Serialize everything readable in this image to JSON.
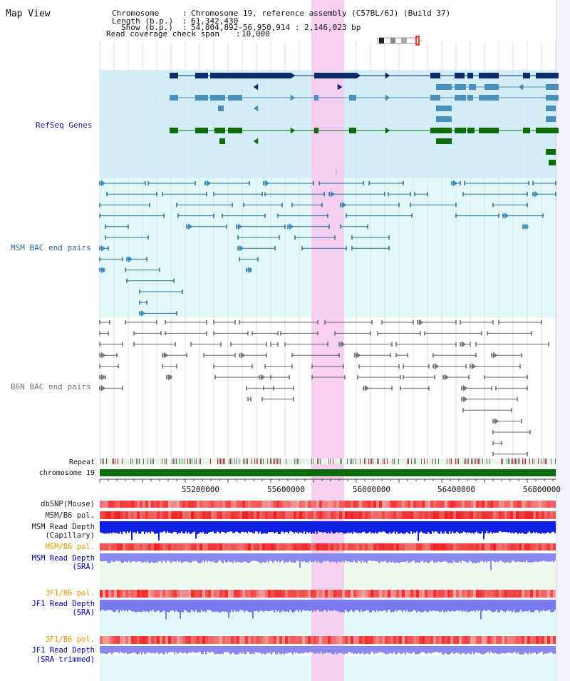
{
  "app": {
    "title": "Map View"
  },
  "header": {
    "chromosome_key": "Chromosome",
    "chromosome_val": "Chromosome 19, reference assembly (C57BL/6J) (Build 37)",
    "length_key": "Length (b.p.)",
    "length_val": "61,342,430",
    "show_key": "Show (b.p.)",
    "show_val": "54,804,892-56,950,914 : 2,146,023 bp",
    "coverage_key": "Read coverage check span",
    "coverage_val": "10,000"
  },
  "tracks": {
    "refseq": "RefSeq Genes",
    "msm_bac": "MSM BAC end pairs",
    "b6n_bac": "B6N BAC end pairs",
    "repeat": "Repeat",
    "chromosome": "chromosome 19",
    "dbsnp": "dbSNP(Mouse)",
    "msm_b6_pol": "MSM/B6 pol.",
    "msm_depth_cap_1": "MSM Read Depth",
    "msm_depth_cap_2": "(Capillary)",
    "msm_b6_pol2": "MSM/B6 pol.",
    "msm_depth_sra_1": "MSM Read Depth",
    "msm_depth_sra_2": "(SRA)",
    "jf1_b6_pol": "JF1/B6 pol.",
    "jf1_depth_sra_1": "JF1 Read Depth",
    "jf1_depth_sra_2": "(SRA)",
    "jf1_b6_pol2": "JF1/B6 pol.",
    "jf1_depth_trim_1": "JF1 Read Depth",
    "jf1_depth_trim_2": "(SRA trimmed)"
  },
  "axis": {
    "ticks": [
      "55200000",
      "55600000",
      "56000000",
      "56400000",
      "56800000"
    ]
  },
  "colors": {
    "refseq_label": "#1a1aa8",
    "msm_label": "#2a6aa0",
    "b6n_label": "#777777",
    "pol_label": "#e69500",
    "depth_label": "#0000aa",
    "highlight": "#f7c8ee",
    "refseq_bg": "#d4eef8",
    "msm_bg": "#e2f8f8",
    "dark_gene": "#0b2c66",
    "light_gene": "#4b8fbd",
    "green_gene": "#0d6b0d"
  }
}
